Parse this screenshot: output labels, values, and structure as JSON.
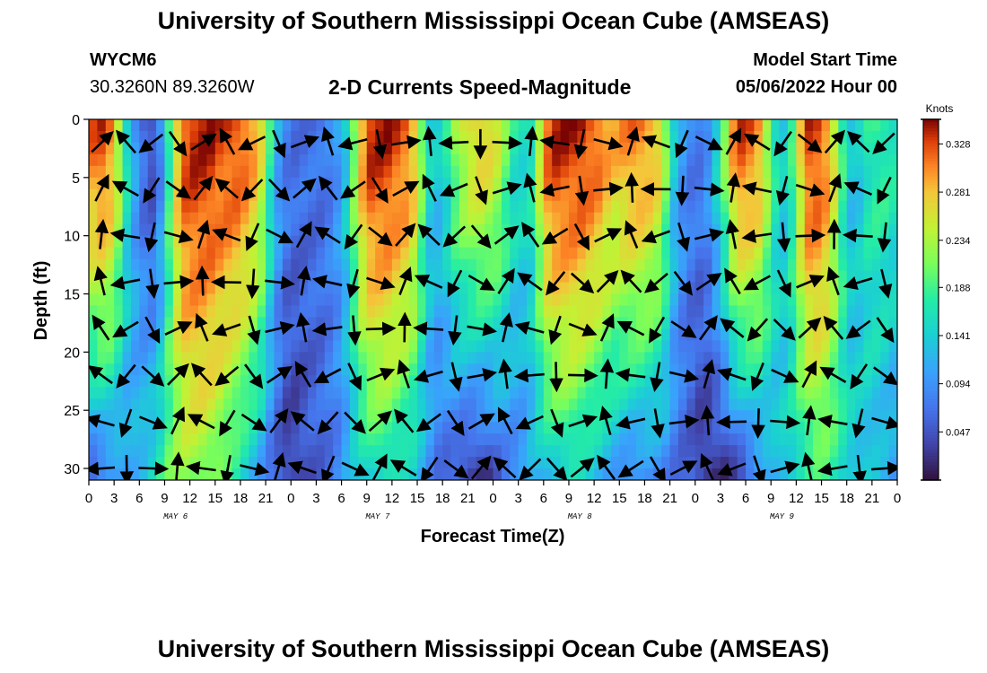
{
  "page": {
    "title": "University of Southern Mississippi Ocean Cube (AMSEAS)",
    "footer_title": "University of Southern Mississippi Ocean Cube (AMSEAS)",
    "station_id": "WYCM6",
    "station_coords": "30.3260N  89.3260W",
    "subtitle": "2-D Currents Speed-Magnitude",
    "model_start_label": "Model Start Time",
    "model_start_value": "05/06/2022 Hour 00"
  },
  "chart_data": {
    "type": "heatmap",
    "title": "2-D Currents Speed-Magnitude",
    "xlabel": "Forecast Time(Z)",
    "ylabel": "Depth (ft)",
    "x_range_hours": [
      0,
      96
    ],
    "y_range_ft": [
      0,
      31
    ],
    "x_ticks_hours": [
      0,
      3,
      6,
      9,
      12,
      15,
      18,
      21,
      24,
      27,
      30,
      33,
      36,
      39,
      42,
      45,
      48,
      51,
      54,
      57,
      60,
      63,
      66,
      69,
      72,
      75,
      78,
      81,
      84,
      87,
      90,
      93,
      96
    ],
    "x_tick_labels": [
      "0",
      "3",
      "6",
      "9",
      "12",
      "15",
      "18",
      "21",
      "0",
      "3",
      "6",
      "9",
      "12",
      "15",
      "18",
      "21",
      "0",
      "3",
      "6",
      "9",
      "12",
      "15",
      "18",
      "21",
      "0",
      "3",
      "6",
      "9",
      "12",
      "15",
      "18",
      "21",
      "0"
    ],
    "y_ticks": [
      0,
      5,
      10,
      15,
      20,
      25,
      30
    ],
    "y_tick_labels": [
      "0",
      "5",
      "10",
      "15",
      "20",
      "25",
      "30"
    ],
    "day_labels": [
      {
        "hour": 12,
        "label": "MAY 6"
      },
      {
        "hour": 36,
        "label": "MAY 7"
      },
      {
        "hour": 60,
        "label": "MAY 8"
      },
      {
        "hour": 84,
        "label": "MAY 9"
      }
    ],
    "colorbar": {
      "units": "Knots",
      "min": 0.0,
      "max": 0.352,
      "tick_values": [
        0.047,
        0.094,
        0.141,
        0.188,
        0.234,
        0.281,
        0.328
      ],
      "tick_labels": [
        "0.047",
        "0.094",
        "0.141",
        "0.188",
        "0.234",
        "0.281",
        "0.328"
      ]
    },
    "speed_profile": {
      "hours": [
        0,
        1,
        2,
        3,
        4,
        5,
        6,
        7,
        8,
        9,
        10,
        11,
        12,
        13,
        14,
        15,
        16,
        17,
        18,
        19,
        20,
        21,
        22,
        23,
        24,
        25,
        26,
        27,
        28,
        29,
        30,
        31,
        32,
        33,
        34,
        35,
        36,
        37,
        38,
        39,
        40,
        41,
        42,
        43,
        44,
        45,
        46,
        47,
        48,
        49,
        50,
        51,
        52,
        53,
        54,
        55,
        56,
        57,
        58,
        59,
        60,
        61,
        62,
        63,
        64,
        65,
        66,
        67,
        68,
        69,
        70,
        71,
        72,
        73,
        74,
        75,
        76,
        77,
        78,
        79,
        80,
        81,
        82,
        83,
        84,
        85,
        86,
        87,
        88,
        89,
        90,
        91,
        92,
        93,
        94,
        95,
        96
      ],
      "surface_knots": [
        0.3,
        0.32,
        0.33,
        0.31,
        0.25,
        0.16,
        0.1,
        0.06,
        0.04,
        0.08,
        0.18,
        0.28,
        0.33,
        0.34,
        0.34,
        0.34,
        0.33,
        0.33,
        0.33,
        0.32,
        0.3,
        0.26,
        0.18,
        0.11,
        0.08,
        0.07,
        0.07,
        0.07,
        0.07,
        0.08,
        0.1,
        0.14,
        0.22,
        0.3,
        0.34,
        0.34,
        0.34,
        0.33,
        0.32,
        0.29,
        0.22,
        0.15,
        0.14,
        0.17,
        0.22,
        0.25,
        0.27,
        0.28,
        0.27,
        0.25,
        0.21,
        0.17,
        0.16,
        0.17,
        0.25,
        0.32,
        0.34,
        0.34,
        0.34,
        0.34,
        0.33,
        0.32,
        0.3,
        0.29,
        0.3,
        0.31,
        0.31,
        0.3,
        0.28,
        0.22,
        0.14,
        0.1,
        0.08,
        0.08,
        0.1,
        0.15,
        0.22,
        0.3,
        0.33,
        0.32,
        0.3,
        0.24,
        0.17,
        0.14,
        0.18,
        0.27,
        0.33,
        0.33,
        0.31,
        0.26,
        0.18,
        0.13,
        0.14,
        0.17,
        0.18,
        0.18,
        0.17
      ],
      "bottom_knots": [
        0.05,
        0.06,
        0.07,
        0.08,
        0.09,
        0.1,
        0.12,
        0.14,
        0.16,
        0.18,
        0.2,
        0.21,
        0.22,
        0.22,
        0.22,
        0.21,
        0.2,
        0.18,
        0.16,
        0.14,
        0.12,
        0.1,
        0.07,
        0.05,
        0.03,
        0.03,
        0.04,
        0.05,
        0.06,
        0.07,
        0.08,
        0.1,
        0.12,
        0.14,
        0.15,
        0.16,
        0.16,
        0.15,
        0.14,
        0.13,
        0.11,
        0.09,
        0.07,
        0.06,
        0.05,
        0.03,
        0.02,
        0.02,
        0.03,
        0.05,
        0.07,
        0.08,
        0.09,
        0.11,
        0.12,
        0.13,
        0.14,
        0.15,
        0.15,
        0.14,
        0.13,
        0.12,
        0.11,
        0.1,
        0.09,
        0.08,
        0.08,
        0.08,
        0.08,
        0.08,
        0.07,
        0.06,
        0.05,
        0.03,
        0.02,
        0.02,
        0.02,
        0.03,
        0.04,
        0.06,
        0.08,
        0.1,
        0.12,
        0.14,
        0.15,
        0.16,
        0.17,
        0.18,
        0.18,
        0.17,
        0.16,
        0.15,
        0.14,
        0.13,
        0.12,
        0.11,
        0.1
      ]
    },
    "vector_layer": {
      "description": "arrows show current direction",
      "depth_levels_ft": [
        2,
        6,
        10,
        14,
        18,
        22,
        26,
        30
      ],
      "hours_every": 3
    }
  }
}
